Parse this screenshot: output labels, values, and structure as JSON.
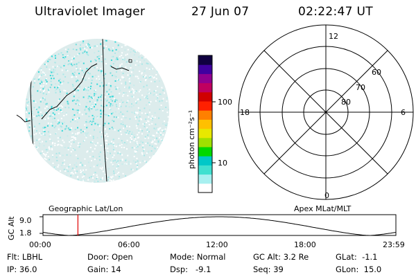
{
  "header": {
    "title": "Ultraviolet Imager",
    "date": "27 Jun 07",
    "time": "02:22:47 UT"
  },
  "colorbar": {
    "unit_label": "photon cm⁻²s⁻¹",
    "ticks": [
      "100",
      "10"
    ],
    "colors": [
      "#ffffff",
      "#a8f0f0",
      "#40e0d0",
      "#00c8c8",
      "#00d800",
      "#a0e000",
      "#e8e800",
      "#ffc000",
      "#ff8000",
      "#ff2000",
      "#d00000",
      "#c00060",
      "#900090",
      "#4000a0",
      "#100040"
    ]
  },
  "polar": {
    "mlt_labels": {
      "top": "12",
      "left": "18",
      "right": "6",
      "bottom": "0"
    },
    "lat_labels": [
      "60",
      "70",
      "80"
    ]
  },
  "altitude_plot": {
    "ylabel": "GC Alt",
    "y_ticks": [
      "9.0",
      "1.8"
    ],
    "left_title": "Geographic Lat/Lon",
    "right_title": "Apex MLat/MLT",
    "x_ticks": [
      "00:00",
      "06:00",
      "12:00",
      "18:00",
      "23:59"
    ],
    "current_time_fraction": 0.099
  },
  "status": {
    "row1": [
      {
        "label": "Flt:",
        "value": "LBHL"
      },
      {
        "label": "Door:",
        "value": "Open"
      },
      {
        "label": "Mode:",
        "value": "Normal"
      },
      {
        "label": "GC Alt:",
        "value": "3.2 Re"
      },
      {
        "label": "GLat:",
        "value": "-1.1"
      }
    ],
    "row2": [
      {
        "label": "IP:",
        "value": "36.0"
      },
      {
        "label": "Gain:",
        "value": "14"
      },
      {
        "label": "Dsp:",
        "value": "-9.1"
      },
      {
        "label": "Seq:",
        "value": "39"
      },
      {
        "label": "GLon:",
        "value": "15.0"
      }
    ]
  }
}
